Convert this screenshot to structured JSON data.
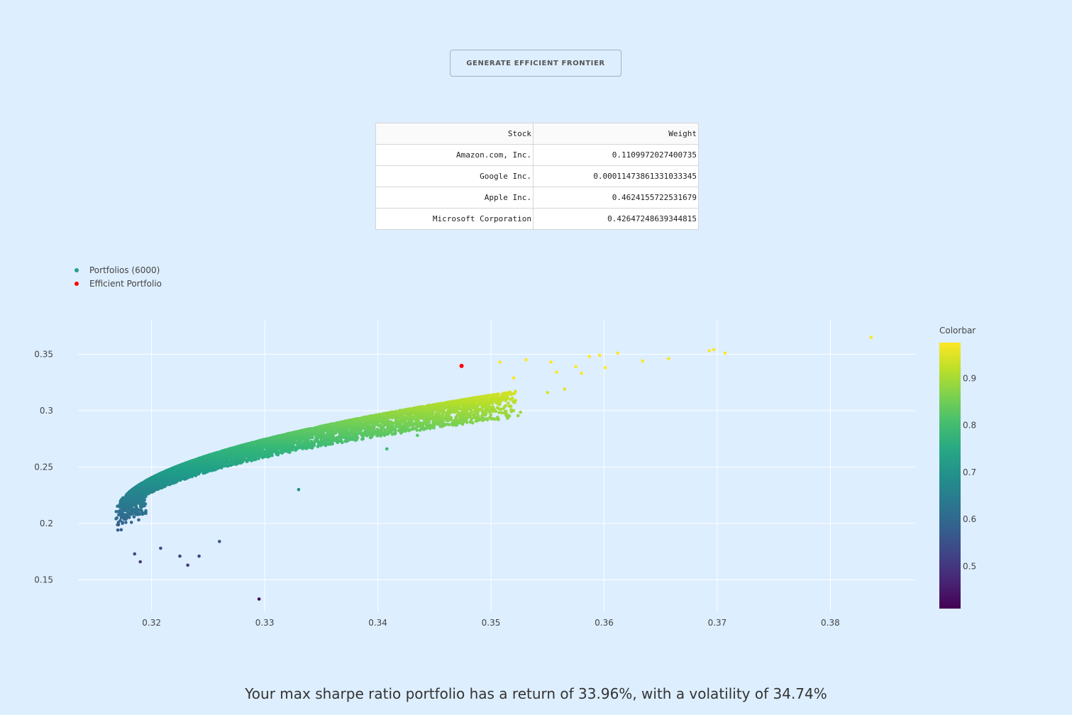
{
  "button": {
    "label": "GENERATE EFFICIENT FRONTIER"
  },
  "table": {
    "headers": [
      "Stock",
      "Weight"
    ],
    "rows": [
      [
        "Amazon.com, Inc.",
        "0.1109972027400735"
      ],
      [
        "Google Inc.",
        "0.00011473861331033345"
      ],
      [
        "Apple Inc.",
        "0.4624155722531679"
      ],
      [
        "Microsoft Corporation",
        "0.42647248639344815"
      ]
    ]
  },
  "legend": {
    "items": [
      {
        "label": "Portfolios (6000)",
        "color": "#2a9d8f"
      },
      {
        "label": "Efficient Portfolio",
        "color": "#ff0000"
      }
    ]
  },
  "summary": "Your max sharpe ratio portfolio has a return of 33.96%, with a volatility of 34.74%",
  "chart_data": {
    "type": "scatter",
    "title": "",
    "xlabel": "",
    "ylabel": "",
    "xlim": [
      0.3135,
      0.3875
    ],
    "ylim": [
      0.122,
      0.381
    ],
    "x_ticks": [
      0.32,
      0.33,
      0.34,
      0.35,
      0.36,
      0.37,
      0.38
    ],
    "y_ticks": [
      0.15,
      0.2,
      0.25,
      0.3,
      0.35
    ],
    "y_tick_labels": [
      "0.15",
      "0.2",
      "0.25",
      "0.3",
      "0.35"
    ],
    "grid": true,
    "colorbar": {
      "title": "Colorbar",
      "ticks": [
        0.5,
        0.6,
        0.7,
        0.8,
        0.9
      ],
      "range": [
        0.41,
        0.976
      ],
      "colorscale": "viridis"
    },
    "series": [
      {
        "name": "Portfolios (6000)",
        "count": 6000,
        "colored_by": "Sharpe ratio",
        "x_range": [
          0.3168,
          0.3836
        ],
        "y_range": [
          0.133,
          0.365
        ],
        "color_range": [
          0.41,
          0.976
        ]
      },
      {
        "name": "Efficient Portfolio",
        "x": [
          0.3474
        ],
        "y": [
          0.3396
        ],
        "color": "#ff0000"
      }
    ]
  }
}
